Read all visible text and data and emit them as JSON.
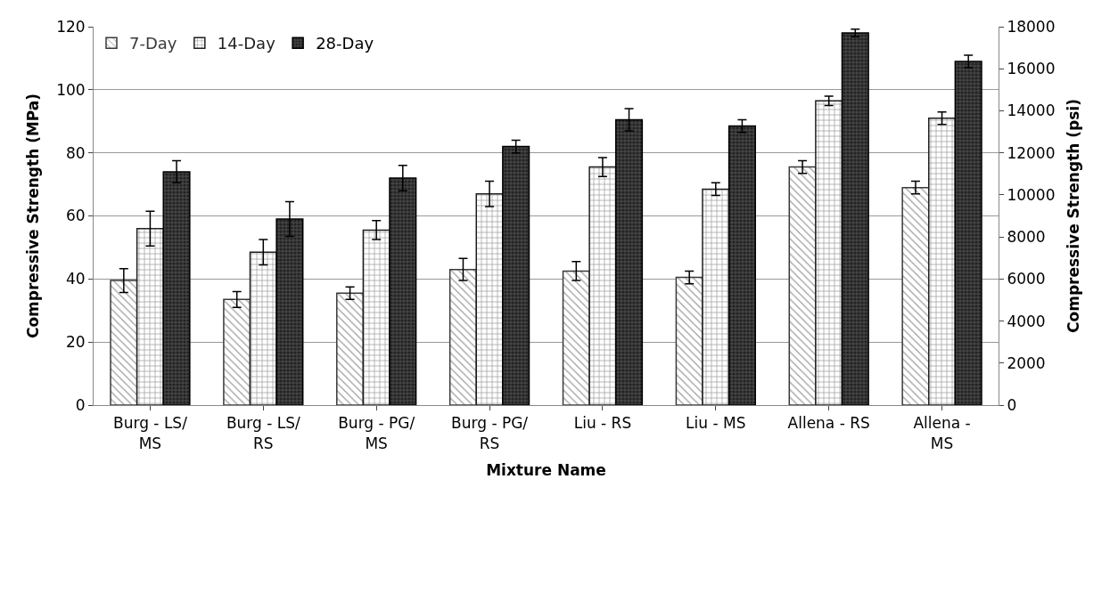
{
  "chart_data": {
    "type": "bar",
    "xlabel": "Mixture Name",
    "ylabel": "Compressive Strength (MPa)",
    "y2label": "Compressive Strength (psi)",
    "categories": [
      "Burg - LS/\nMS",
      "Burg - LS/\nRS",
      "Burg - PG/\nMS",
      "Burg - PG/\nRS",
      "Liu - RS",
      "Liu - MS",
      "Allena - RS",
      "Allena -\nMS"
    ],
    "series": [
      {
        "name": "7-Day",
        "color": "#3a3a3a",
        "values": [
          39.5,
          33.5,
          35.5,
          43,
          42.5,
          40.5,
          75.5,
          69
        ],
        "errors": [
          3.8,
          2.5,
          2,
          3.5,
          3,
          2,
          2,
          2
        ]
      },
      {
        "name": "14-Day",
        "color": "#1f1f1f",
        "values": [
          56,
          48.5,
          55.5,
          67,
          75.5,
          68.5,
          96.5,
          91
        ],
        "errors": [
          5.5,
          4,
          3,
          4,
          3,
          2,
          1.5,
          2
        ]
      },
      {
        "name": "28-Day",
        "color": "#000000",
        "values": [
          74,
          59,
          72,
          82,
          90.5,
          88.5,
          118,
          109
        ],
        "errors": [
          3.5,
          5.5,
          4,
          2,
          3.5,
          2,
          1.2,
          2
        ]
      }
    ],
    "ylim": [
      0,
      120
    ],
    "yticks": [
      0,
      20,
      40,
      60,
      80,
      100,
      120
    ],
    "y2lim": [
      0,
      18000
    ],
    "y2ticks": [
      0,
      2000,
      4000,
      6000,
      8000,
      10000,
      12000,
      14000,
      16000,
      18000
    ],
    "grid": "y",
    "legend": "top left"
  }
}
